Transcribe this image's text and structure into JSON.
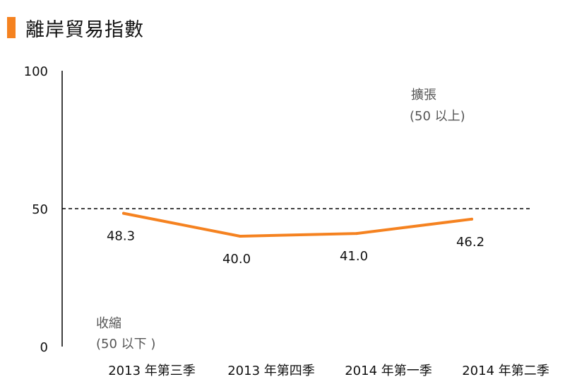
{
  "title": "離岸貿易指數",
  "colors": {
    "accent": "#F58220",
    "line": "#F58220",
    "axis": "#000000",
    "reference": "#000000"
  },
  "annotations": {
    "expansion_label": "擴張",
    "expansion_range": "(50 以上)",
    "contraction_label": "收縮",
    "contraction_range": "(50 以下  )"
  },
  "chart_data": {
    "type": "line",
    "title": "離岸貿易指數",
    "xlabel": "",
    "ylabel": "",
    "categories": [
      "2013 年第三季",
      "2013 年第四季",
      "2014 年第一季",
      "2014 年第二季"
    ],
    "series": [
      {
        "values": [
          48.3,
          40.0,
          41.0,
          46.2
        ],
        "data_labels": [
          "48.3",
          "40.0",
          "41.0",
          "46.2"
        ]
      }
    ],
    "ylim": [
      0,
      100
    ],
    "yticks": [
      "0",
      "50",
      "100"
    ],
    "reference_line": {
      "value": 50,
      "style": "dashed"
    },
    "grid": false,
    "legend": "none"
  }
}
